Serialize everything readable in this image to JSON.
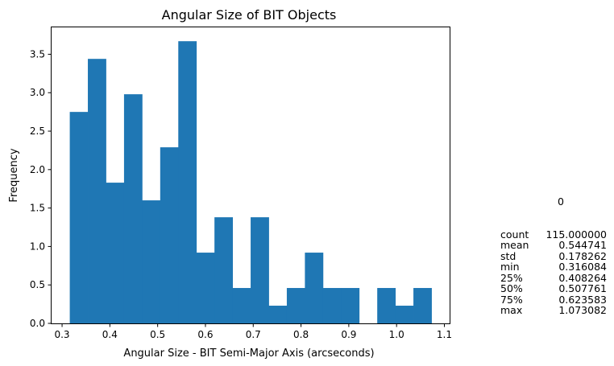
{
  "chart_data": {
    "type": "bar",
    "title": "Angular Size of BIT Objects",
    "xlabel": "Angular Size - BIT Semi-Major Axis (arcseconds)",
    "ylabel": "Frequency",
    "bin_edges": [
      0.316084,
      0.3539339,
      0.3917838,
      0.4296337,
      0.4674836,
      0.5053335,
      0.5431834,
      0.5810333,
      0.6188832,
      0.6567331,
      0.694583,
      0.7324329,
      0.7702828,
      0.8081327,
      0.8459826,
      0.8838325,
      0.9216824,
      0.9595323,
      0.9973822,
      1.0352321,
      1.073082
    ],
    "values": [
      2.75,
      3.44,
      1.83,
      2.98,
      1.6,
      2.29,
      3.67,
      0.92,
      1.38,
      0.46,
      1.38,
      0.23,
      0.46,
      0.92,
      0.46,
      0.46,
      0.0,
      0.46,
      0.23,
      0.46
    ],
    "bar_color": "#1f77b4",
    "xlim": [
      0.278,
      1.111
    ],
    "ylim": [
      0.0,
      3.85
    ],
    "xticks": [
      0.3,
      0.4,
      0.5,
      0.6,
      0.7,
      0.8,
      0.9,
      1.0,
      1.1
    ],
    "xtick_labels": [
      "0.3",
      "0.4",
      "0.5",
      "0.6",
      "0.7",
      "0.8",
      "0.9",
      "1.0",
      "1.1"
    ],
    "yticks": [
      0.0,
      0.5,
      1.0,
      1.5,
      2.0,
      2.5,
      3.0,
      3.5
    ],
    "ytick_labels": [
      "0.0",
      "0.5",
      "1.0",
      "1.5",
      "2.0",
      "2.5",
      "3.0",
      "3.5"
    ],
    "grid": false,
    "legend": "none"
  },
  "stats": {
    "header": "0",
    "rows": [
      {
        "label": "count",
        "value": "115.000000"
      },
      {
        "label": "mean",
        "value": "0.544741"
      },
      {
        "label": "std",
        "value": "0.178262"
      },
      {
        "label": "min",
        "value": "0.316084"
      },
      {
        "label": "25%",
        "value": "0.408264"
      },
      {
        "label": "50%",
        "value": "0.507761"
      },
      {
        "label": "75%",
        "value": "0.623583"
      },
      {
        "label": "max",
        "value": "1.073082"
      }
    ]
  }
}
